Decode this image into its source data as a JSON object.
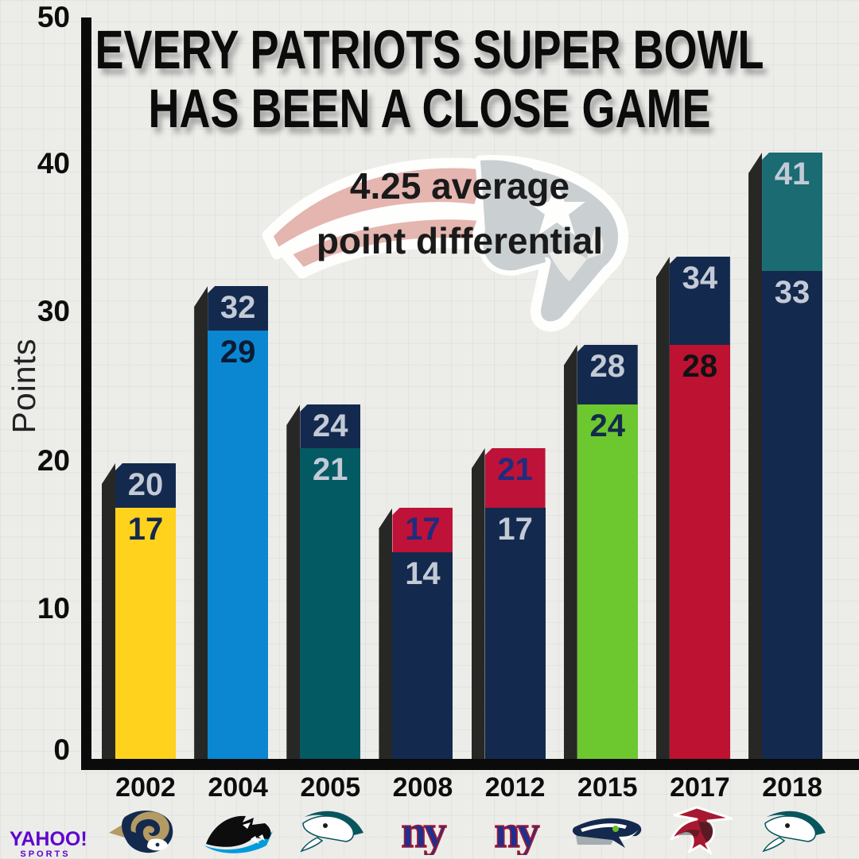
{
  "title": {
    "line1": "EVERY PATRIOTS SUPER BOWL",
    "line2": "HAS BEEN A CLOSE GAME"
  },
  "subtitle": {
    "line1": "4.25 average",
    "line2": "point differential"
  },
  "y_axis": {
    "label": "Points",
    "ticks": [
      {
        "value": 50,
        "label": "50"
      },
      {
        "value": 40,
        "label": "40"
      },
      {
        "value": 30,
        "label": "30"
      },
      {
        "value": 20,
        "label": "20"
      },
      {
        "value": 10,
        "label": "10"
      },
      {
        "value": 0,
        "label": "0"
      }
    ]
  },
  "brand": {
    "name": "YAHOO!",
    "sub": "SPORTS"
  },
  "colors": {
    "background": "#ECECE9",
    "axis": "#0B0B0B",
    "bar_edge": "#272725",
    "patriots_navy": "#14294E",
    "silver_text": "#C3CAD6"
  },
  "chart_data": {
    "type": "bar",
    "title": "EVERY PATRIOTS SUPER BOWL HAS BEEN A CLOSE GAME",
    "subtitle": "4.25 average point differential",
    "ylabel": "Points",
    "ylim": [
      0,
      50
    ],
    "yticks": [
      0,
      10,
      20,
      30,
      40,
      50
    ],
    "grid": false,
    "legend": "none",
    "categories": [
      "2002",
      "2004",
      "2005",
      "2008",
      "2012",
      "2015",
      "2017",
      "2018"
    ],
    "series": [
      {
        "name": "winning_score",
        "values": [
          20,
          32,
          24,
          17,
          21,
          28,
          34,
          41
        ]
      },
      {
        "name": "losing_score",
        "values": [
          17,
          29,
          21,
          14,
          17,
          24,
          28,
          33
        ]
      }
    ],
    "bars": [
      {
        "year": "2002",
        "win": 20,
        "lose": 17,
        "win_color": "#14294E",
        "lose_color": "#FFD21E",
        "win_text": "#C3CAD6",
        "lose_text": "#14294E",
        "logo": "rams-logo"
      },
      {
        "year": "2004",
        "win": 32,
        "lose": 29,
        "win_color": "#14294E",
        "lose_color": "#0A87D0",
        "win_text": "#C3CAD6",
        "lose_text": "#0C1B35",
        "logo": "panthers-logo"
      },
      {
        "year": "2005",
        "win": 24,
        "lose": 21,
        "win_color": "#14294E",
        "lose_color": "#045A62",
        "win_text": "#C3CAD6",
        "lose_text": "#C3CAD6",
        "logo": "eagles-logo"
      },
      {
        "year": "2008",
        "win": 17,
        "lose": 14,
        "win_color": "#BE1238",
        "lose_color": "#14294E",
        "win_text": "#1F2C7E",
        "lose_text": "#C3CAD6",
        "logo": "giants-logo"
      },
      {
        "year": "2012",
        "win": 21,
        "lose": 17,
        "win_color": "#BE1238",
        "lose_color": "#14294E",
        "win_text": "#1F2C7E",
        "lose_text": "#C3CAD6",
        "logo": "giants-logo"
      },
      {
        "year": "2015",
        "win": 28,
        "lose": 24,
        "win_color": "#14294E",
        "lose_color": "#6CC82E",
        "win_text": "#C3CAD6",
        "lose_text": "#14294E",
        "logo": "seahawks-logo"
      },
      {
        "year": "2017",
        "win": 34,
        "lose": 28,
        "win_color": "#14294E",
        "lose_color": "#BD1232",
        "win_text": "#C3CAD6",
        "lose_text": "#121212",
        "logo": "falcons-logo"
      },
      {
        "year": "2018",
        "win": 41,
        "lose": 33,
        "win_color": "#1A6B72",
        "lose_color": "#14294E",
        "win_text": "#C3CAD6",
        "lose_text": "#C3CAD6",
        "logo": "eagles-logo"
      }
    ]
  }
}
